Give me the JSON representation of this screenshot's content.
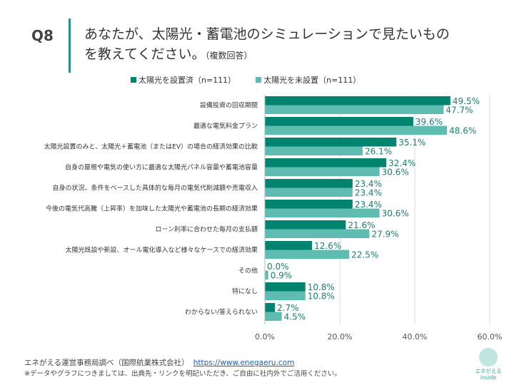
{
  "header": {
    "qnum": "Q8",
    "title_line1": "あなたが、太陽光・蓄電池のシミュレーションで見たいもの",
    "title_line2": "を教えてください。",
    "title_note": "（複数回答）"
  },
  "chart_data": {
    "type": "bar",
    "orientation": "horizontal",
    "categories": [
      "設備投資の回収期間",
      "最適な電気料金プラン",
      "太陽光設置のみと、太陽光＋蓄電池（またはEV）の場合の経済効果の比較",
      "自身の屋根や電気の使い方に最適な太陽光パネル容量や蓄電池容量",
      "自身の状況、条件をベースした具体的な毎月の電気代削減額や売電収入",
      "今後の電気代高騰（上昇率）を加味した太陽光や蓄電池の長期の経済効果",
      "ローン利率に合わせた毎月の支払額",
      "太陽光既設や新設、オール電化導入など様々なケースでの経済効果",
      "その他",
      "特になし",
      "わからない/答えられない"
    ],
    "series": [
      {
        "name": "太陽光を設置済（n=111）",
        "color": "#00846f",
        "values": [
          49.5,
          39.6,
          35.1,
          32.4,
          23.4,
          23.4,
          21.6,
          12.6,
          0.0,
          10.8,
          2.7
        ]
      },
      {
        "name": "太陽光を未設置（n=111）",
        "color": "#5ebcb0",
        "values": [
          47.7,
          48.6,
          26.1,
          30.6,
          23.4,
          30.6,
          27.9,
          22.5,
          0.9,
          10.8,
          4.5
        ]
      }
    ],
    "xlim": [
      0,
      60
    ],
    "xticks": [
      "0.0%",
      "20.0%",
      "40.0%",
      "60.0%"
    ],
    "grid": true,
    "legend": "top",
    "label_color": "#1f7c70"
  },
  "footer": {
    "source": "エネがえる運営事務局調べ（国際航業株式会社）",
    "link": "https://www.enegaeru.com",
    "note": "※データやグラフにつきましては、出典先・リンクを明記いただき、ご自由に社内外でご活用ください。"
  },
  "logo": {
    "line1": "エネがえる",
    "line2": "inside"
  }
}
